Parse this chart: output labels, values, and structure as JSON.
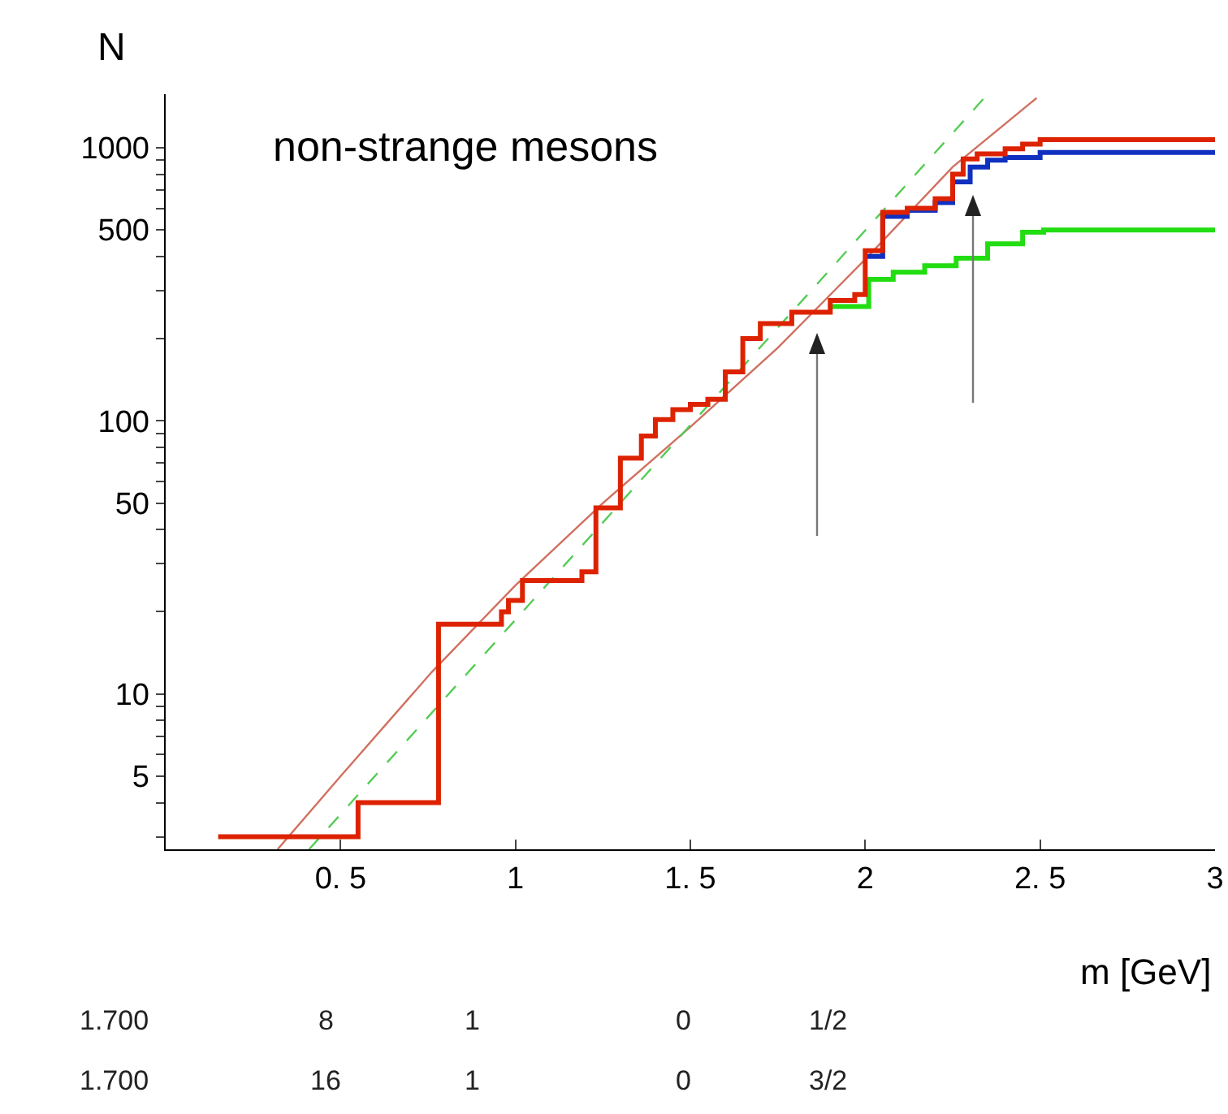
{
  "chart_data": {
    "type": "step",
    "title": "non-strange mesons",
    "ylabel": "N",
    "xlabel": "m [GeV]",
    "log": "y",
    "grid": false,
    "marker": "none",
    "xlim": [
      0,
      3
    ],
    "xticks": [
      {
        "value": 0.5,
        "label": "0. 5"
      },
      1,
      {
        "value": 1.5,
        "label": "1. 5"
      },
      2,
      {
        "value": 2.5,
        "label": "2. 5"
      },
      3
    ],
    "ylim": [
      2.7,
      1570
    ],
    "yticks": [
      {
        "value": 3,
        "label": null
      },
      {
        "value": 4,
        "label": null
      },
      5,
      {
        "value": 6,
        "label": null
      },
      {
        "value": 7,
        "label": null
      },
      {
        "value": 8,
        "label": null
      },
      {
        "value": 9,
        "label": null
      },
      10,
      {
        "value": 20,
        "label": null
      },
      {
        "value": 30,
        "label": null
      },
      {
        "value": 40,
        "label": null
      },
      50,
      {
        "value": 60,
        "label": null
      },
      {
        "value": 70,
        "label": null
      },
      {
        "value": 80,
        "label": null
      },
      {
        "value": 90,
        "label": null
      },
      100,
      {
        "value": 200,
        "label": null
      },
      {
        "value": 300,
        "label": null
      },
      {
        "value": 400,
        "label": null
      },
      500,
      {
        "value": 600,
        "label": null
      },
      {
        "value": 700,
        "label": null
      },
      {
        "value": 800,
        "label": null
      },
      {
        "value": 900,
        "label": null
      },
      1000
    ],
    "series": [
      {
        "type": "line",
        "color": "#d07060",
        "x": [
          0.32,
          0.5,
          0.76,
          1.0,
          1.25,
          1.5,
          1.75,
          2.0,
          2.25,
          2.49
        ],
        "values": [
          2.7,
          5,
          12,
          25,
          50,
          95,
          185,
          390,
          850,
          1520
        ]
      },
      {
        "type": "line",
        "line_style": "dashed",
        "color": "#55cc55",
        "x": [
          0.41,
          1.375,
          2.34
        ],
        "values": [
          2.7,
          64,
          1520
        ]
      },
      {
        "color": "#22dd11",
        "x": [
          1.9,
          2.01,
          2.08,
          2.17,
          2.26,
          2.35,
          2.45,
          2.51,
          3.0
        ],
        "values": [
          262,
          330,
          350,
          370,
          394,
          445,
          490,
          500,
          500
        ]
      },
      {
        "color": "#1030c0",
        "x": [
          2.0,
          2.05,
          2.12,
          2.2,
          2.25,
          2.3,
          2.35,
          2.4,
          2.5,
          3.0
        ],
        "values": [
          400,
          560,
          590,
          630,
          750,
          850,
          900,
          920,
          960,
          960
        ]
      },
      {
        "color": "#dd2200",
        "x": [
          0.15,
          0.55,
          0.78,
          0.96,
          0.98,
          1.02,
          1.19,
          1.23,
          1.3,
          1.36,
          1.4,
          1.45,
          1.5,
          1.55,
          1.6,
          1.65,
          1.7,
          1.79,
          1.9,
          1.97,
          2.0,
          2.05,
          2.12,
          2.2,
          2.25,
          2.28,
          2.32,
          2.4,
          2.45,
          2.5,
          3.0
        ],
        "values": [
          3,
          4,
          18,
          20,
          22,
          26,
          28,
          48,
          73,
          88,
          101,
          110,
          115,
          120,
          151,
          200,
          227,
          250,
          276,
          290,
          420,
          580,
          600,
          650,
          800,
          910,
          950,
          990,
          1030,
          1070,
          1070
        ]
      }
    ],
    "annotations": [
      "1.700 8 1 0 1/2",
      "1.700 16 1 0 3/2"
    ]
  }
}
